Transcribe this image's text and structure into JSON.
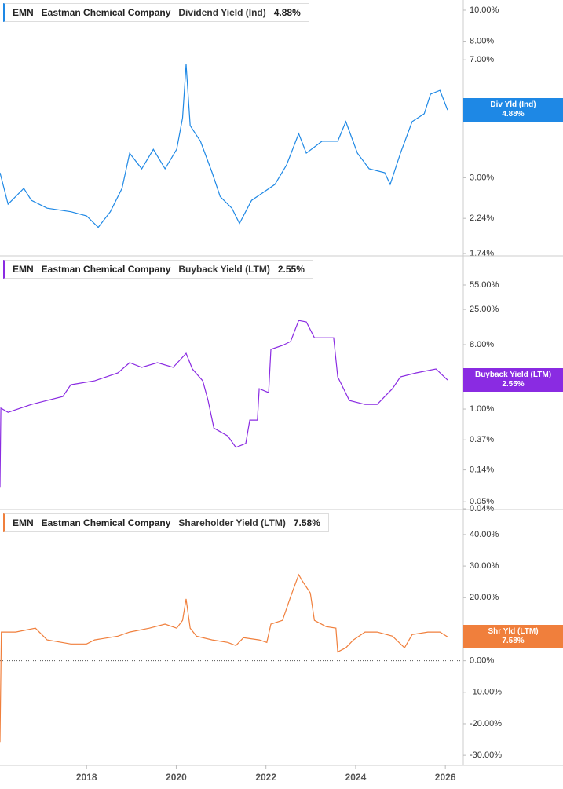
{
  "chart_data": [
    {
      "type": "line",
      "ticker": "EMN",
      "company": "Eastman Chemical Company",
      "badge": "Div Yld (Ind)",
      "log_scale": true,
      "xlim": [
        2016.07,
        2026.4
      ],
      "ylim": [
        1.72,
        10.76
      ],
      "yticks": [
        {
          "value": 1.74,
          "label": "1.74%"
        },
        {
          "value": 2.24,
          "label": "2.24%"
        },
        {
          "value": 3,
          "label": "3.00%"
        },
        {
          "value": 7,
          "label": "7.00%"
        },
        {
          "value": 8,
          "label": "8.00%"
        },
        {
          "value": 10,
          "label": "10.00%"
        }
      ],
      "x": [
        2016.07,
        2016.25,
        2016.6,
        2016.77,
        2017.12,
        2017.65,
        2018.0,
        2018.26,
        2018.53,
        2018.79,
        2018.96,
        2019.23,
        2019.49,
        2019.75,
        2020.01,
        2020.14,
        2020.22,
        2020.31,
        2020.54,
        2020.8,
        2020.98,
        2021.24,
        2021.41,
        2021.68,
        2021.94,
        2022.2,
        2022.46,
        2022.73,
        2022.9,
        2023.25,
        2023.6,
        2023.78,
        2024.04,
        2024.3,
        2024.65,
        2024.77,
        2025.0,
        2025.26,
        2025.53,
        2025.67,
        2025.88,
        2026.05
      ],
      "series": [
        {
          "name": "Dividend Yield (Ind)",
          "color": "#1e88e5",
          "last_label": "4.88%",
          "values": [
            3.11,
            2.48,
            2.78,
            2.55,
            2.41,
            2.35,
            2.28,
            2.1,
            2.35,
            2.78,
            3.58,
            3.2,
            3.68,
            3.2,
            3.68,
            4.61,
            6.78,
            4.36,
            3.9,
            3.11,
            2.62,
            2.41,
            2.16,
            2.55,
            2.7,
            2.86,
            3.29,
            4.12,
            3.58,
            3.9,
            3.9,
            4.49,
            3.58,
            3.2,
            3.11,
            2.86,
            3.58,
            4.49,
            4.75,
            5.47,
            5.62,
            4.88
          ]
        }
      ]
    },
    {
      "type": "line",
      "ticker": "EMN",
      "company": "Eastman Chemical Company",
      "badge": "Buyback Yield (LTM)",
      "log_scale": true,
      "xlim": [
        2016.07,
        2026.4
      ],
      "ylim": [
        0.04,
        137
      ],
      "yticks": [
        {
          "value": 0.04,
          "label": "0.04%"
        },
        {
          "value": 0.05,
          "label": "0.05%"
        },
        {
          "value": 0.14,
          "label": "0.14%"
        },
        {
          "value": 0.37,
          "label": "0.37%"
        },
        {
          "value": 1,
          "label": "1.00%"
        },
        {
          "value": 8,
          "label": "8.00%"
        },
        {
          "value": 25,
          "label": "25.00%"
        },
        {
          "value": 55,
          "label": "55.00%"
        }
      ],
      "x": [
        2016.07,
        2016.09,
        2016.25,
        2016.77,
        2017.12,
        2017.47,
        2017.65,
        2018.18,
        2018.7,
        2018.96,
        2019.23,
        2019.58,
        2019.93,
        2020.22,
        2020.36,
        2020.59,
        2020.71,
        2020.84,
        2021.15,
        2021.33,
        2021.55,
        2021.64,
        2021.81,
        2021.85,
        2022.06,
        2022.11,
        2022.37,
        2022.55,
        2022.73,
        2022.9,
        2023.08,
        2023.51,
        2023.6,
        2023.86,
        2024.21,
        2024.48,
        2024.65,
        2024.82,
        2025.0,
        2025.35,
        2025.79,
        2026.05
      ],
      "series": [
        {
          "name": "Buyback Yield (LTM)",
          "color": "#8a2be2",
          "last_label": "2.55%",
          "values": [
            0.081,
            1.03,
            0.9,
            1.16,
            1.32,
            1.5,
            2.19,
            2.49,
            3.21,
            4.47,
            3.84,
            4.47,
            3.84,
            6.05,
            3.65,
            2.49,
            1.32,
            0.54,
            0.42,
            0.29,
            0.33,
            0.7,
            0.7,
            1.93,
            1.7,
            6.87,
            7.8,
            8.85,
            17.5,
            16.7,
            10.0,
            10.0,
            2.83,
            1.32,
            1.16,
            1.16,
            1.5,
            1.93,
            2.83,
            3.21,
            3.65,
            2.55
          ]
        }
      ]
    },
    {
      "type": "line",
      "ticker": "EMN",
      "company": "Eastman Chemical Company",
      "badge": "Shr Yld (LTM)",
      "log_scale": false,
      "zero_line": true,
      "xlim": [
        2016.07,
        2026.4
      ],
      "ylim": [
        -33.2,
        47.7
      ],
      "yticks": [
        {
          "value": -30,
          "label": "-30.00%"
        },
        {
          "value": -20,
          "label": "-20.00%"
        },
        {
          "value": -10,
          "label": "-10.00%"
        },
        {
          "value": 0,
          "label": "0.00%"
        },
        {
          "value": 10,
          "label": "10.00%"
        },
        {
          "value": 20,
          "label": "20.00%"
        },
        {
          "value": 30,
          "label": "30.00%"
        },
        {
          "value": 40,
          "label": "40.00%"
        }
      ],
      "xticks": [
        2018,
        2020,
        2022,
        2024,
        2026
      ],
      "x": [
        2016.07,
        2016.1,
        2016.42,
        2016.86,
        2017.12,
        2017.65,
        2018.0,
        2018.18,
        2018.7,
        2018.96,
        2019.4,
        2019.75,
        2020.01,
        2020.14,
        2020.22,
        2020.31,
        2020.45,
        2020.8,
        2021.15,
        2021.33,
        2021.5,
        2021.85,
        2022.02,
        2022.11,
        2022.37,
        2022.55,
        2022.73,
        2022.81,
        2022.99,
        2023.08,
        2023.34,
        2023.56,
        2023.6,
        2023.78,
        2023.95,
        2024.21,
        2024.48,
        2024.82,
        2025.09,
        2025.26,
        2025.61,
        2025.88,
        2026.05
      ],
      "series": [
        {
          "name": "Shareholder Yield (LTM)",
          "color": "#f07f3c",
          "last_label": "7.58%",
          "values": [
            -25.8,
            9.1,
            9.1,
            10.3,
            6.6,
            5.3,
            5.3,
            6.6,
            7.8,
            9.1,
            10.3,
            11.6,
            10.3,
            12.8,
            19.6,
            10.3,
            7.8,
            6.6,
            5.8,
            4.8,
            7.3,
            6.6,
            5.8,
            11.6,
            12.8,
            20.3,
            27.3,
            25.3,
            21.5,
            12.8,
            10.8,
            10.3,
            2.8,
            4.1,
            6.6,
            9.1,
            9.1,
            7.8,
            4.1,
            8.3,
            9.1,
            9.1,
            7.58
          ]
        }
      ]
    }
  ]
}
